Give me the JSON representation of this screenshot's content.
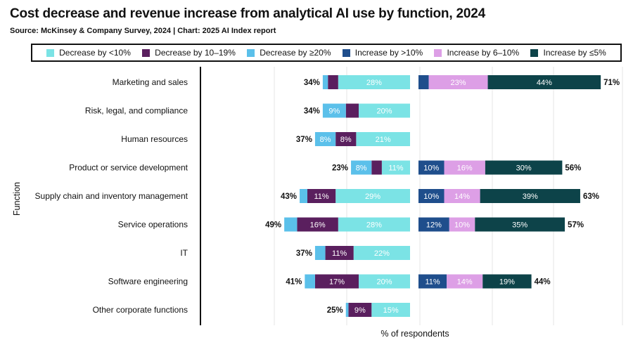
{
  "title": "Cost decrease and revenue increase from analytical AI use by function, 2024",
  "source": "Source: McKinsey & Company Survey, 2024 | Chart: 2025 AI Index report",
  "colors": {
    "dec_lt10": "#7be3e5",
    "dec_10_19": "#5a1f5e",
    "dec_ge20": "#5bc0ea",
    "inc_gt10": "#1f4e8c",
    "inc_6_10": "#dd9fe6",
    "inc_le5": "#0d4349"
  },
  "legend": [
    {
      "label": "Decrease by <10%",
      "color": "#7be3e5"
    },
    {
      "label": "Decrease by 10–19%",
      "color": "#5a1f5e"
    },
    {
      "label": "Decrease by ≥20%",
      "color": "#5bc0ea"
    },
    {
      "label": "Increase by >10%",
      "color": "#1f4e8c"
    },
    {
      "label": "Increase by 6–10%",
      "color": "#dd9fe6"
    },
    {
      "label": "Increase by ≤5%",
      "color": "#0d4349"
    }
  ],
  "chart_data": {
    "type": "bar",
    "orientation": "horizontal",
    "stacked": true,
    "diverging": true,
    "title": "Cost decrease and revenue increase from analytical AI use by function, 2024",
    "xlabel": "% of respondents",
    "ylabel": "Function",
    "grid": true,
    "legend_position": "top",
    "categories": [
      "Marketing and sales",
      "Risk, legal, and compliance",
      "Human resources",
      "Product or service development",
      "Supply chain and inventory management",
      "Service operations",
      "IT",
      "Software engineering",
      "Other corporate functions"
    ],
    "cost_decrease": {
      "totals": [
        "34%",
        "34%",
        "37%",
        "23%",
        "43%",
        "49%",
        "37%",
        "41%",
        "25%"
      ],
      "series": [
        {
          "name": "Decrease by <10%",
          "values": [
            28,
            20,
            21,
            11,
            29,
            28,
            22,
            20,
            15
          ],
          "labels": [
            "28%",
            "20%",
            "21%",
            "11%",
            "29%",
            "28%",
            "22%",
            "20%",
            "15%"
          ]
        },
        {
          "name": "Decrease by 10–19%",
          "values": [
            4,
            5,
            8,
            4,
            11,
            16,
            11,
            17,
            9
          ],
          "labels": [
            "",
            "",
            "8%",
            "",
            "11%",
            "16%",
            "11%",
            "17%",
            "9%"
          ]
        },
        {
          "name": "Decrease by ≥20%",
          "values": [
            2,
            9,
            8,
            8,
            3,
            5,
            4,
            4,
            1
          ],
          "labels": [
            "",
            "9%",
            "8%",
            "8%",
            "",
            "",
            "",
            "",
            ""
          ]
        }
      ]
    },
    "revenue_increase": {
      "totals": [
        "71%",
        "",
        "",
        "56%",
        "63%",
        "57%",
        "",
        "44%",
        ""
      ],
      "series": [
        {
          "name": "Increase by >10%",
          "values": [
            4,
            0,
            0,
            10,
            10,
            12,
            0,
            11,
            0
          ],
          "labels": [
            "",
            "",
            "",
            "10%",
            "10%",
            "12%",
            "",
            "11%",
            ""
          ]
        },
        {
          "name": "Increase by 6–10%",
          "values": [
            23,
            0,
            0,
            16,
            14,
            10,
            0,
            14,
            0
          ],
          "labels": [
            "23%",
            "",
            "",
            "16%",
            "14%",
            "10%",
            "",
            "14%",
            ""
          ]
        },
        {
          "name": "Increase by ≤5%",
          "values": [
            44,
            0,
            0,
            30,
            39,
            35,
            0,
            19,
            0
          ],
          "labels": [
            "44%",
            "",
            "",
            "30%",
            "39%",
            "35%",
            "",
            "19%",
            ""
          ]
        }
      ]
    }
  }
}
